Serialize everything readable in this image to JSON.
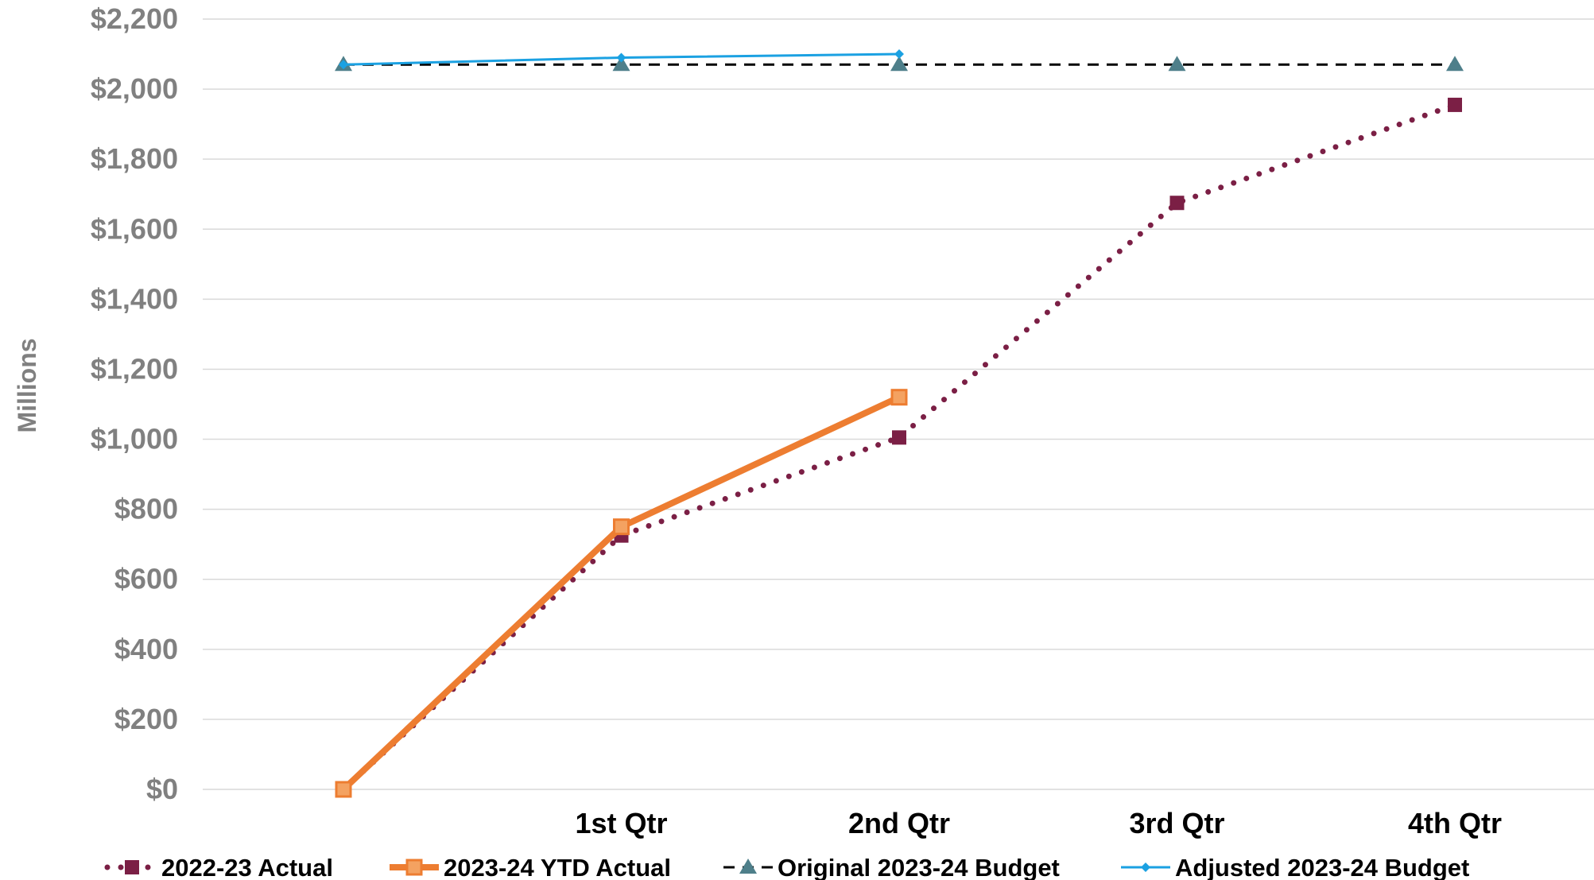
{
  "chart_data": {
    "type": "line",
    "title": "",
    "xlabel": "",
    "ylabel": "Millions",
    "categories": [
      "",
      "1st Qtr",
      "2nd Qtr",
      "3rd Qtr",
      "4th Qtr"
    ],
    "ylim": [
      0,
      2200
    ],
    "y_ticks": [
      {
        "value": 0,
        "label": "$0"
      },
      {
        "value": 200,
        "label": "$200"
      },
      {
        "value": 400,
        "label": "$400"
      },
      {
        "value": 600,
        "label": "$600"
      },
      {
        "value": 800,
        "label": "$800"
      },
      {
        "value": 1000,
        "label": "$1,000"
      },
      {
        "value": 1200,
        "label": "$1,200"
      },
      {
        "value": 1400,
        "label": "$1,400"
      },
      {
        "value": 1600,
        "label": "$1,600"
      },
      {
        "value": 1800,
        "label": "$1,800"
      },
      {
        "value": 2000,
        "label": "$2,000"
      },
      {
        "value": 2200,
        "label": "$2,200"
      }
    ],
    "grid": true,
    "legend_position": "bottom",
    "series": [
      {
        "name": "2022-23 Actual",
        "values": [
          0,
          725,
          1005,
          1675,
          1955
        ],
        "color": "#7B1F45",
        "style": "dotted",
        "marker": "square"
      },
      {
        "name": "2023-24 YTD Actual",
        "values": [
          0,
          750,
          1120,
          null,
          null
        ],
        "color": "#ED7D31",
        "style": "solid-thick",
        "marker": "square-hollow"
      },
      {
        "name": "Original 2023-24 Budget",
        "values": [
          2070,
          2070,
          2070,
          2070,
          2070
        ],
        "color": "#000000",
        "marker_color": "#4E7F8A",
        "style": "dashed",
        "marker": "triangle"
      },
      {
        "name": "Adjusted 2023-24 Budget",
        "values": [
          2070,
          2090,
          2100,
          null,
          null
        ],
        "color": "#1BA1E2",
        "style": "solid-thin",
        "marker": "diamond"
      }
    ]
  }
}
